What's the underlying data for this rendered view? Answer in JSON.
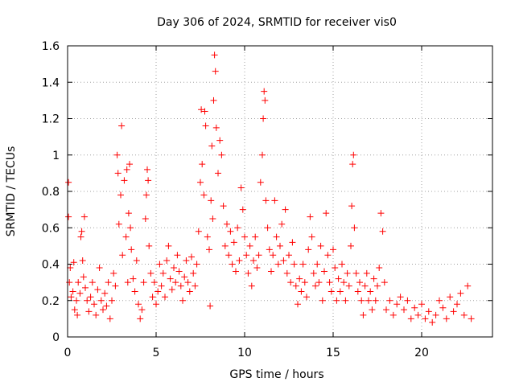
{
  "chart_data": {
    "type": "scatter",
    "title": "Day 306 of 2024, SRMTID for receiver vis0",
    "xlabel": "GPS time / hours",
    "ylabel": "SRMTID / TECUs",
    "xlim": [
      0,
      24
    ],
    "ylim": [
      0,
      1.6
    ],
    "xticks": [
      0,
      5,
      10,
      15,
      20
    ],
    "yticks": [
      0,
      0.2,
      0.4,
      0.6,
      0.8,
      1,
      1.2,
      1.4,
      1.6
    ],
    "xtick_labels": [
      "0",
      "5",
      "10",
      "15",
      "20"
    ],
    "ytick_labels": [
      "0",
      "0.2",
      "0.4",
      "0.6",
      "0.8",
      "1",
      "1.2",
      "1.4",
      "1.6"
    ],
    "grid": true,
    "marker": "+",
    "color": "#ff0000",
    "series": [
      {
        "name": "SRMTID",
        "points": [
          [
            0.05,
            0.85
          ],
          [
            0.05,
            0.66
          ],
          [
            0.1,
            0.3
          ],
          [
            0.15,
            0.38
          ],
          [
            0.2,
            0.22
          ],
          [
            0.3,
            0.25
          ],
          [
            0.35,
            0.41
          ],
          [
            0.4,
            0.15
          ],
          [
            0.5,
            0.2
          ],
          [
            0.55,
            0.12
          ],
          [
            0.6,
            0.3
          ],
          [
            0.7,
            0.24
          ],
          [
            0.75,
            0.55
          ],
          [
            0.8,
            0.58
          ],
          [
            0.85,
            0.42
          ],
          [
            0.9,
            0.33
          ],
          [
            0.95,
            0.66
          ],
          [
            1.0,
            0.27
          ],
          [
            1.1,
            0.2
          ],
          [
            1.2,
            0.14
          ],
          [
            1.3,
            0.22
          ],
          [
            1.4,
            0.3
          ],
          [
            1.5,
            0.18
          ],
          [
            1.6,
            0.12
          ],
          [
            1.7,
            0.26
          ],
          [
            1.8,
            0.38
          ],
          [
            1.9,
            0.2
          ],
          [
            2.0,
            0.15
          ],
          [
            2.1,
            0.24
          ],
          [
            2.2,
            0.17
          ],
          [
            2.3,
            0.3
          ],
          [
            2.4,
            0.1
          ],
          [
            2.5,
            0.2
          ],
          [
            2.6,
            0.35
          ],
          [
            2.7,
            0.28
          ],
          [
            2.8,
            1.0
          ],
          [
            2.85,
            0.9
          ],
          [
            2.9,
            0.62
          ],
          [
            3.0,
            0.78
          ],
          [
            3.05,
            1.16
          ],
          [
            3.1,
            0.45
          ],
          [
            3.2,
            0.86
          ],
          [
            3.3,
            0.55
          ],
          [
            3.35,
            0.92
          ],
          [
            3.4,
            0.3
          ],
          [
            3.45,
            0.68
          ],
          [
            3.5,
            0.95
          ],
          [
            3.55,
            0.6
          ],
          [
            3.6,
            0.48
          ],
          [
            3.7,
            0.32
          ],
          [
            3.8,
            0.25
          ],
          [
            3.9,
            0.42
          ],
          [
            4.0,
            0.18
          ],
          [
            4.1,
            0.1
          ],
          [
            4.2,
            0.15
          ],
          [
            4.3,
            0.3
          ],
          [
            4.4,
            0.65
          ],
          [
            4.45,
            0.78
          ],
          [
            4.5,
            0.92
          ],
          [
            4.55,
            0.86
          ],
          [
            4.6,
            0.5
          ],
          [
            4.7,
            0.35
          ],
          [
            4.8,
            0.22
          ],
          [
            4.9,
            0.3
          ],
          [
            5.0,
            0.18
          ],
          [
            5.1,
            0.25
          ],
          [
            5.2,
            0.4
          ],
          [
            5.3,
            0.28
          ],
          [
            5.4,
            0.35
          ],
          [
            5.5,
            0.22
          ],
          [
            5.6,
            0.42
          ],
          [
            5.7,
            0.5
          ],
          [
            5.8,
            0.32
          ],
          [
            5.9,
            0.26
          ],
          [
            6.0,
            0.38
          ],
          [
            6.1,
            0.3
          ],
          [
            6.2,
            0.45
          ],
          [
            6.3,
            0.36
          ],
          [
            6.4,
            0.28
          ],
          [
            6.5,
            0.2
          ],
          [
            6.6,
            0.33
          ],
          [
            6.7,
            0.42
          ],
          [
            6.8,
            0.3
          ],
          [
            6.9,
            0.25
          ],
          [
            7.0,
            0.44
          ],
          [
            7.1,
            0.35
          ],
          [
            7.2,
            0.28
          ],
          [
            7.3,
            0.4
          ],
          [
            7.4,
            0.58
          ],
          [
            7.5,
            0.85
          ],
          [
            7.55,
            1.25
          ],
          [
            7.6,
            0.95
          ],
          [
            7.7,
            0.78
          ],
          [
            7.75,
            1.24
          ],
          [
            7.8,
            1.16
          ],
          [
            7.9,
            0.55
          ],
          [
            8.0,
            0.48
          ],
          [
            8.05,
            0.17
          ],
          [
            8.1,
            0.75
          ],
          [
            8.15,
            1.05
          ],
          [
            8.2,
            0.65
          ],
          [
            8.25,
            1.3
          ],
          [
            8.3,
            1.55
          ],
          [
            8.35,
            1.46
          ],
          [
            8.4,
            1.15
          ],
          [
            8.5,
            0.9
          ],
          [
            8.6,
            1.08
          ],
          [
            8.7,
            1.0
          ],
          [
            8.8,
            0.72
          ],
          [
            8.9,
            0.5
          ],
          [
            9.0,
            0.62
          ],
          [
            9.1,
            0.45
          ],
          [
            9.2,
            0.58
          ],
          [
            9.3,
            0.4
          ],
          [
            9.4,
            0.52
          ],
          [
            9.5,
            0.36
          ],
          [
            9.6,
            0.6
          ],
          [
            9.7,
            0.42
          ],
          [
            9.8,
            0.82
          ],
          [
            9.9,
            0.7
          ],
          [
            10.0,
            0.55
          ],
          [
            10.1,
            0.45
          ],
          [
            10.2,
            0.35
          ],
          [
            10.3,
            0.5
          ],
          [
            10.4,
            0.28
          ],
          [
            10.5,
            0.42
          ],
          [
            10.6,
            0.55
          ],
          [
            10.7,
            0.38
          ],
          [
            10.8,
            0.45
          ],
          [
            10.9,
            0.85
          ],
          [
            11.0,
            1.0
          ],
          [
            11.05,
            1.2
          ],
          [
            11.1,
            1.35
          ],
          [
            11.15,
            1.3
          ],
          [
            11.2,
            0.75
          ],
          [
            11.3,
            0.6
          ],
          [
            11.4,
            0.48
          ],
          [
            11.5,
            0.36
          ],
          [
            11.6,
            0.45
          ],
          [
            11.7,
            0.75
          ],
          [
            11.8,
            0.55
          ],
          [
            11.9,
            0.4
          ],
          [
            12.0,
            0.5
          ],
          [
            12.1,
            0.62
          ],
          [
            12.2,
            0.42
          ],
          [
            12.3,
            0.7
          ],
          [
            12.4,
            0.35
          ],
          [
            12.5,
            0.45
          ],
          [
            12.6,
            0.3
          ],
          [
            12.7,
            0.52
          ],
          [
            12.8,
            0.4
          ],
          [
            12.9,
            0.28
          ],
          [
            13.0,
            0.18
          ],
          [
            13.1,
            0.32
          ],
          [
            13.2,
            0.25
          ],
          [
            13.3,
            0.4
          ],
          [
            13.4,
            0.3
          ],
          [
            13.5,
            0.22
          ],
          [
            13.6,
            0.48
          ],
          [
            13.7,
            0.66
          ],
          [
            13.8,
            0.55
          ],
          [
            13.9,
            0.35
          ],
          [
            14.0,
            0.28
          ],
          [
            14.1,
            0.4
          ],
          [
            14.2,
            0.3
          ],
          [
            14.3,
            0.5
          ],
          [
            14.4,
            0.2
          ],
          [
            14.5,
            0.36
          ],
          [
            14.6,
            0.68
          ],
          [
            14.7,
            0.45
          ],
          [
            14.8,
            0.3
          ],
          [
            14.9,
            0.25
          ],
          [
            15.0,
            0.48
          ],
          [
            15.1,
            0.38
          ],
          [
            15.2,
            0.2
          ],
          [
            15.3,
            0.32
          ],
          [
            15.4,
            0.25
          ],
          [
            15.5,
            0.4
          ],
          [
            15.6,
            0.3
          ],
          [
            15.7,
            0.2
          ],
          [
            15.8,
            0.35
          ],
          [
            15.9,
            0.28
          ],
          [
            16.0,
            0.5
          ],
          [
            16.05,
            0.72
          ],
          [
            16.1,
            0.95
          ],
          [
            16.15,
            1.0
          ],
          [
            16.2,
            0.6
          ],
          [
            16.3,
            0.35
          ],
          [
            16.4,
            0.25
          ],
          [
            16.5,
            0.3
          ],
          [
            16.6,
            0.2
          ],
          [
            16.7,
            0.12
          ],
          [
            16.8,
            0.28
          ],
          [
            16.9,
            0.35
          ],
          [
            17.0,
            0.2
          ],
          [
            17.1,
            0.25
          ],
          [
            17.2,
            0.15
          ],
          [
            17.3,
            0.32
          ],
          [
            17.4,
            0.2
          ],
          [
            17.5,
            0.28
          ],
          [
            17.6,
            0.38
          ],
          [
            17.7,
            0.68
          ],
          [
            17.8,
            0.58
          ],
          [
            17.9,
            0.3
          ],
          [
            18.0,
            0.15
          ],
          [
            18.2,
            0.2
          ],
          [
            18.4,
            0.12
          ],
          [
            18.6,
            0.18
          ],
          [
            18.8,
            0.22
          ],
          [
            19.0,
            0.15
          ],
          [
            19.2,
            0.2
          ],
          [
            19.4,
            0.1
          ],
          [
            19.6,
            0.16
          ],
          [
            19.8,
            0.12
          ],
          [
            20.0,
            0.18
          ],
          [
            20.2,
            0.1
          ],
          [
            20.4,
            0.14
          ],
          [
            20.6,
            0.08
          ],
          [
            20.8,
            0.12
          ],
          [
            21.0,
            0.2
          ],
          [
            21.2,
            0.16
          ],
          [
            21.4,
            0.1
          ],
          [
            21.6,
            0.22
          ],
          [
            21.8,
            0.14
          ],
          [
            22.0,
            0.18
          ],
          [
            22.2,
            0.24
          ],
          [
            22.4,
            0.12
          ],
          [
            22.6,
            0.28
          ],
          [
            22.8,
            0.1
          ]
        ]
      }
    ]
  }
}
